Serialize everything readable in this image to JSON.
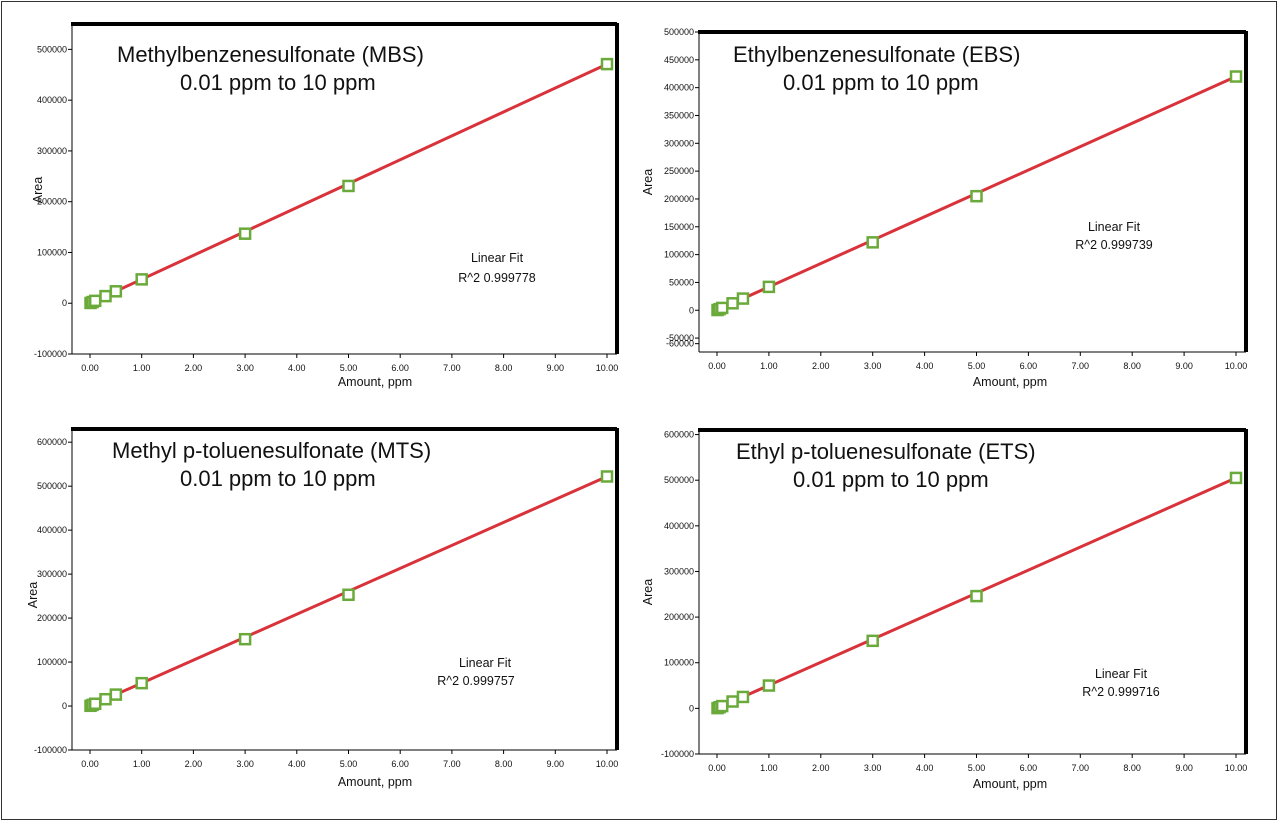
{
  "colors": {
    "fit_line": "#d9323a",
    "marker": "#6aaa3a",
    "marker_inner": "#ffffff",
    "axis": "#000000"
  },
  "chart_data": [
    {
      "type": "scatter",
      "title": "Methylbenzenesulfonate (MBS)",
      "subtitle": "0.01 ppm to 10 ppm",
      "xlabel": "Amount,  ppm",
      "ylabel": "Area",
      "xlim": [
        0,
        10
      ],
      "ylim": [
        -100000,
        550000
      ],
      "xticks": [
        "0.00",
        "1.00",
        "2.00",
        "3.00",
        "4.00",
        "5.00",
        "6.00",
        "7.00",
        "8.00",
        "9.00",
        "10.00"
      ],
      "yticks": [
        "-100000",
        "0",
        "100000",
        "200000",
        "300000",
        "400000",
        "500000"
      ],
      "grid": false,
      "fit_label": "Linear Fit",
      "r2_label": "R^2  0.999778",
      "series": [
        {
          "values": [
            [
              0.01,
              500
            ],
            [
              0.05,
              2300
            ],
            [
              0.1,
              4700
            ],
            [
              0.3,
              14000
            ],
            [
              0.5,
              23500
            ],
            [
              1.0,
              47000
            ],
            [
              3.0,
              137000
            ],
            [
              5.0,
              231000
            ],
            [
              10.0,
              471000
            ]
          ]
        }
      ],
      "fit": [
        [
          0,
          0
        ],
        [
          10,
          471000
        ]
      ]
    },
    {
      "type": "scatter",
      "title": "Ethylbenzenesulfonate (EBS)",
      "subtitle": "0.01 ppm to 10 ppm",
      "xlabel": "Amount,  ppm",
      "ylabel": "Area",
      "xlim": [
        0,
        10
      ],
      "ylim": [
        -75000,
        500000
      ],
      "xticks": [
        "0.00",
        "1.00",
        "2.00",
        "3.00",
        "4.00",
        "5.00",
        "6.00",
        "7.00",
        "8.00",
        "9.00",
        "10.00"
      ],
      "yticks": [
        "-60000",
        "-50000",
        "0",
        "50000",
        "100000",
        "150000",
        "200000",
        "250000",
        "300000",
        "350000",
        "400000",
        "450000",
        "500000"
      ],
      "ytick_values": [
        -60000,
        -50000,
        0,
        50000,
        100000,
        150000,
        200000,
        250000,
        300000,
        350000,
        400000,
        450000,
        500000
      ],
      "grid": false,
      "fit_label": "Linear Fit",
      "r2_label": "R^2  0.999739",
      "series": [
        {
          "values": [
            [
              0.01,
              400
            ],
            [
              0.05,
              2000
            ],
            [
              0.1,
              4200
            ],
            [
              0.3,
              12500
            ],
            [
              0.5,
              21000
            ],
            [
              1.0,
              42000
            ],
            [
              3.0,
              122000
            ],
            [
              5.0,
              205000
            ],
            [
              10.0,
              420000
            ]
          ]
        }
      ],
      "fit": [
        [
          0,
          0
        ],
        [
          10,
          420000
        ]
      ]
    },
    {
      "type": "scatter",
      "title": "Methyl p-toluenesulfonate (MTS)",
      "subtitle": "0.01 ppm to 10 ppm",
      "xlabel": "Amount,  ppm",
      "ylabel": "Area",
      "xlim": [
        0,
        10
      ],
      "ylim": [
        -100000,
        630000
      ],
      "xticks": [
        "0.00",
        "1.00",
        "2.00",
        "3.00",
        "4.00",
        "5.00",
        "6.00",
        "7.00",
        "8.00",
        "9.00",
        "10.00"
      ],
      "yticks": [
        "-100000",
        "0",
        "100000",
        "200000",
        "300000",
        "400000",
        "500000",
        "600000"
      ],
      "grid": false,
      "fit_label": "Linear Fit",
      "r2_label": "R^2  0.999757",
      "series": [
        {
          "values": [
            [
              0.01,
              500
            ],
            [
              0.05,
              2600
            ],
            [
              0.1,
              5200
            ],
            [
              0.3,
              15500
            ],
            [
              0.5,
              26000
            ],
            [
              1.0,
              52000
            ],
            [
              3.0,
              152000
            ],
            [
              5.0,
              253000
            ],
            [
              10.0,
              522000
            ]
          ]
        }
      ],
      "fit": [
        [
          0,
          0
        ],
        [
          10,
          522000
        ]
      ]
    },
    {
      "type": "scatter",
      "title": "Ethyl p-toluenesulfonate (ETS)",
      "subtitle": "0.01 ppm to 10 ppm",
      "xlabel": "Amount,  ppm",
      "ylabel": "Area",
      "xlim": [
        0,
        10
      ],
      "ylim": [
        -100000,
        610000
      ],
      "xticks": [
        "0.00",
        "1.00",
        "2.00",
        "3.00",
        "4.00",
        "5.00",
        "6.00",
        "7.00",
        "8.00",
        "9.00",
        "10.00"
      ],
      "yticks": [
        "-100000",
        "0",
        "100000",
        "200000",
        "300000",
        "400000",
        "500000",
        "600000"
      ],
      "grid": false,
      "fit_label": "Linear Fit",
      "r2_label": "R^2  0.999716",
      "series": [
        {
          "values": [
            [
              0.01,
              500
            ],
            [
              0.05,
              2500
            ],
            [
              0.1,
              5000
            ],
            [
              0.3,
              15000
            ],
            [
              0.5,
              25000
            ],
            [
              1.0,
              50000
            ],
            [
              3.0,
              148000
            ],
            [
              5.0,
              246000
            ],
            [
              10.0,
              505000
            ]
          ]
        }
      ],
      "fit": [
        [
          0,
          0
        ],
        [
          10,
          505000
        ]
      ]
    }
  ]
}
